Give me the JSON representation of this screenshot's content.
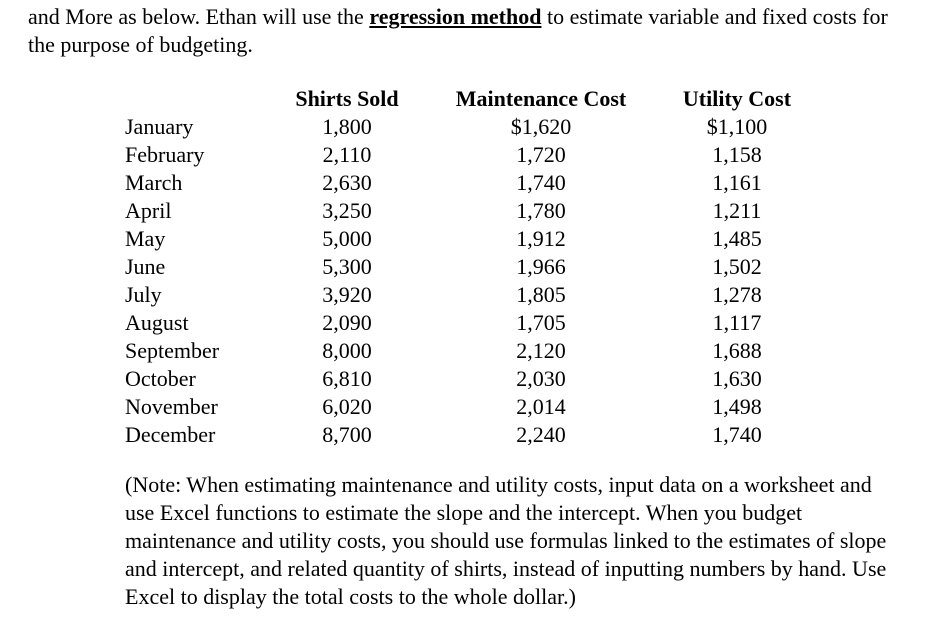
{
  "intro": {
    "before_highlight": "and More as below. Ethan will use the ",
    "highlight": "regression method",
    "after_highlight": " to estimate variable and fixed costs for the purpose of budgeting."
  },
  "table": {
    "columns": [
      "",
      "Shirts Sold",
      "Maintenance Cost",
      "Utility Cost"
    ],
    "rows": [
      {
        "month": "January",
        "shirts": "1,800",
        "maintenance": "$1,620",
        "utility": "$1,100"
      },
      {
        "month": "February",
        "shirts": "2,110",
        "maintenance": "1,720",
        "utility": "1,158"
      },
      {
        "month": "March",
        "shirts": "2,630",
        "maintenance": "1,740",
        "utility": "1,161"
      },
      {
        "month": "April",
        "shirts": "3,250",
        "maintenance": "1,780",
        "utility": "1,211"
      },
      {
        "month": "May",
        "shirts": "5,000",
        "maintenance": "1,912",
        "utility": "1,485"
      },
      {
        "month": "June",
        "shirts": "5,300",
        "maintenance": "1,966",
        "utility": "1,502"
      },
      {
        "month": "July",
        "shirts": "3,920",
        "maintenance": "1,805",
        "utility": "1,278"
      },
      {
        "month": "August",
        "shirts": "2,090",
        "maintenance": "1,705",
        "utility": "1,117"
      },
      {
        "month": "September",
        "shirts": "8,000",
        "maintenance": "2,120",
        "utility": "1,688"
      },
      {
        "month": "October",
        "shirts": "6,810",
        "maintenance": "2,030",
        "utility": "1,630"
      },
      {
        "month": "November",
        "shirts": "6,020",
        "maintenance": "2,014",
        "utility": "1,498"
      },
      {
        "month": "December",
        "shirts": "8,700",
        "maintenance": "2,240",
        "utility": "1,740"
      }
    ]
  },
  "note": {
    "full_text": "(Note: When estimating maintenance and utility costs, input data on a worksheet and use Excel functions to estimate the slope and the intercept. When you budget maintenance and utility costs, you should use formulas linked to the estimates of slope and intercept, and related quantity of shirts, instead of inputting numbers by hand. Use Excel to display the total costs to the whole dollar.)"
  },
  "colors": {
    "text": "#000000",
    "background": "#ffffff"
  }
}
